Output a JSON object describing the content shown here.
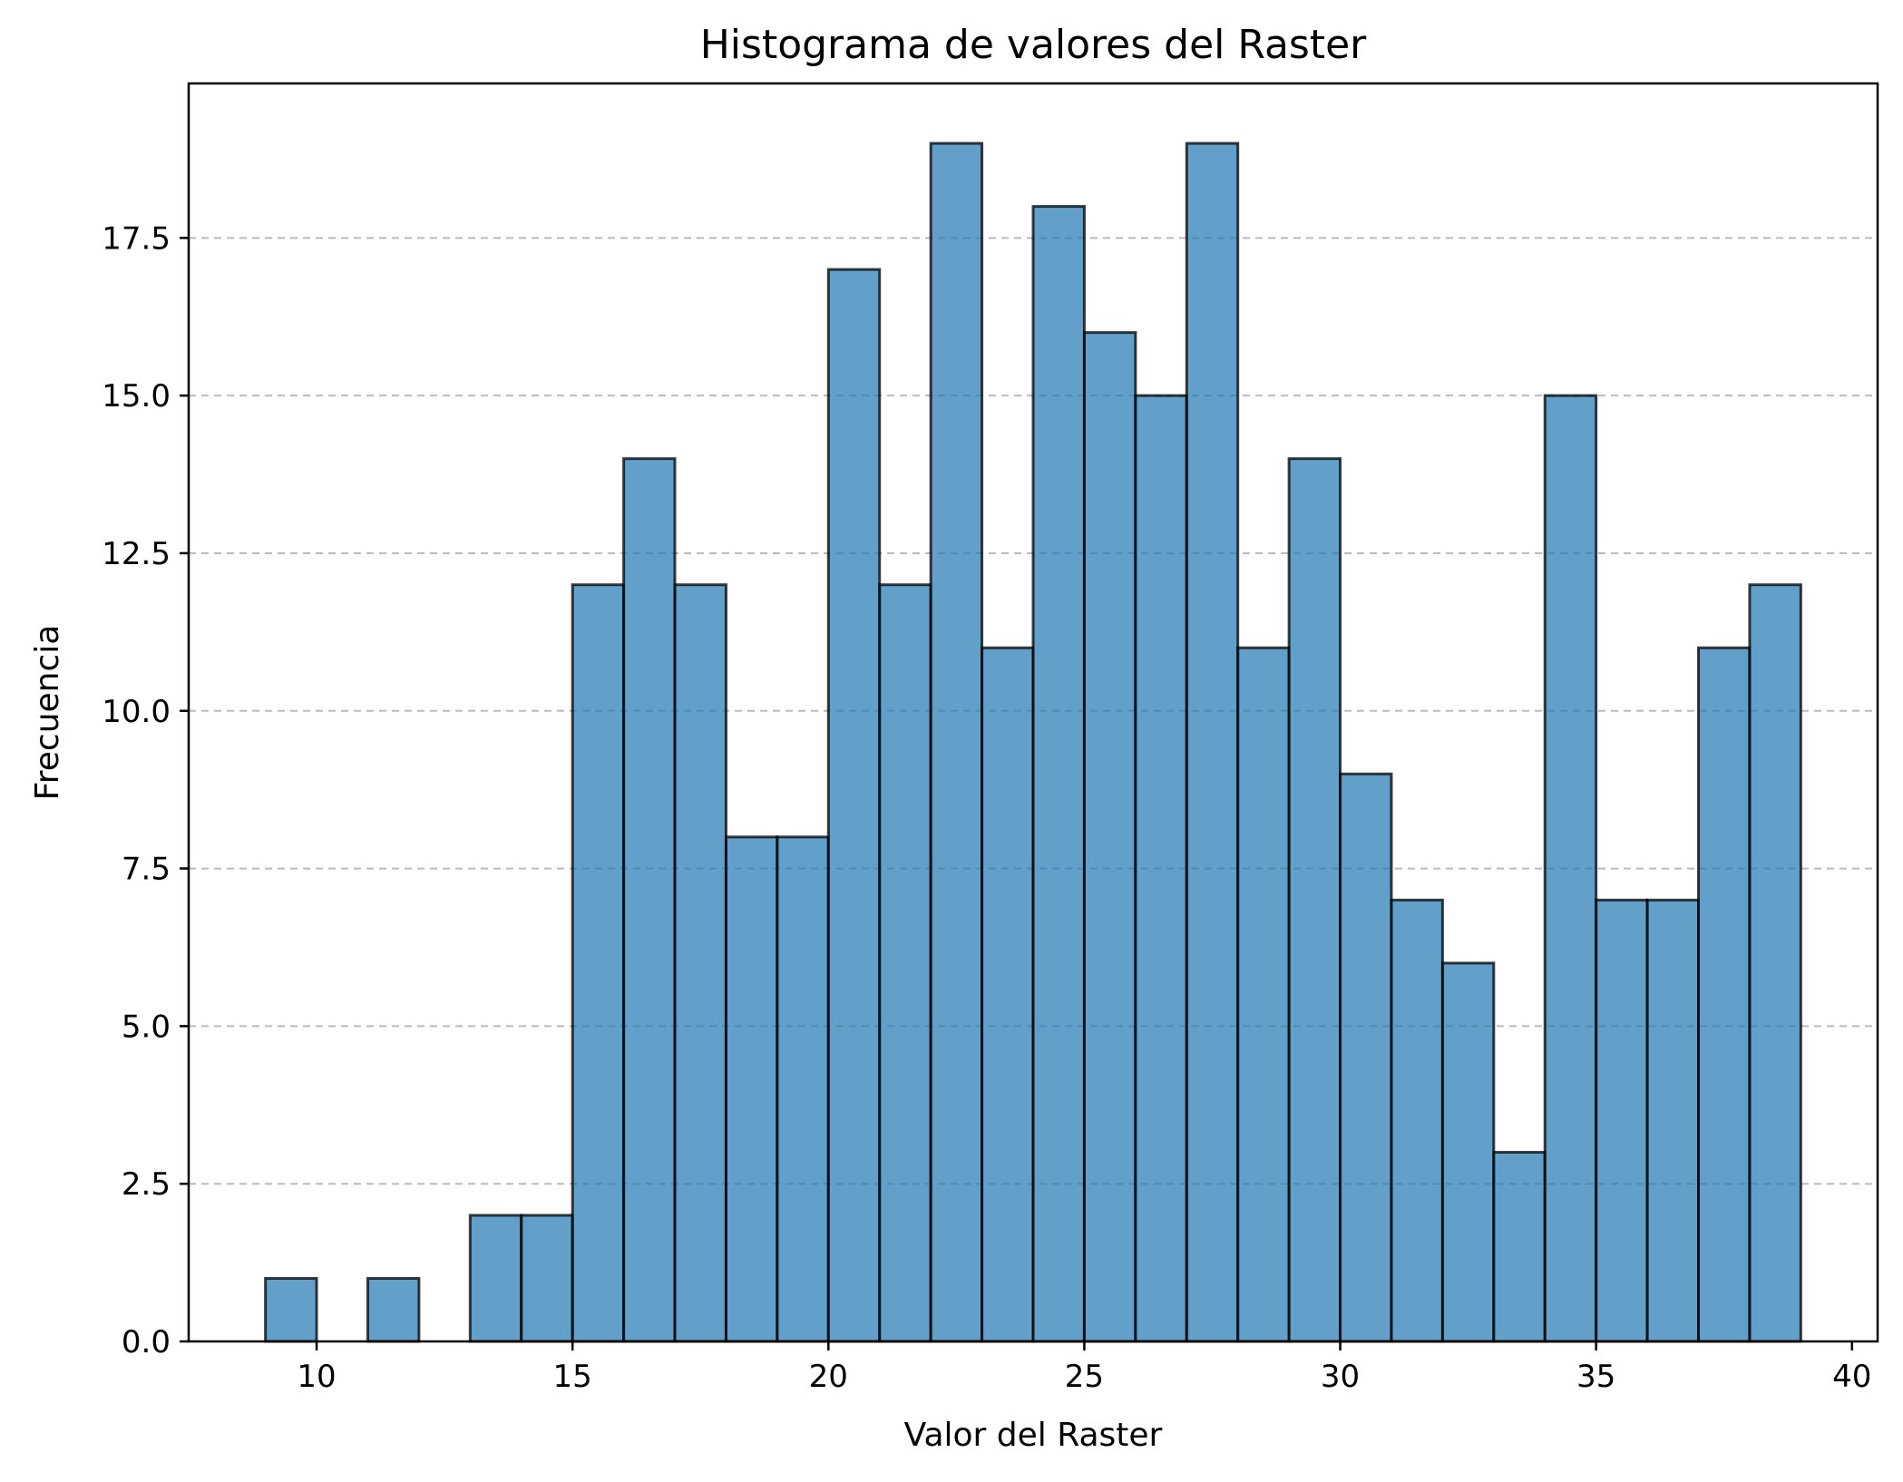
{
  "chart_data": {
    "type": "bar",
    "title": "Histograma de valores del Raster",
    "xlabel": "Valor del Raster",
    "ylabel": "Frecuencia",
    "bin_width": 1,
    "bin_starts": [
      9,
      10,
      11,
      12,
      13,
      14,
      15,
      16,
      17,
      18,
      19,
      20,
      21,
      22,
      23,
      24,
      25,
      26,
      27,
      28,
      29,
      30,
      31,
      32,
      33,
      34,
      35,
      36,
      37,
      38
    ],
    "values": [
      1,
      0,
      1,
      0,
      2,
      2,
      12,
      14,
      12,
      8,
      8,
      17,
      12,
      19,
      11,
      18,
      16,
      15,
      19,
      11,
      14,
      9,
      7,
      6,
      3,
      15,
      7,
      7,
      11,
      12
    ],
    "xlim": [
      7.5,
      40.5
    ],
    "ylim": [
      0,
      19.95
    ],
    "xticks": [
      10,
      15,
      20,
      25,
      30,
      35,
      40
    ],
    "xtick_labels": [
      "10",
      "15",
      "20",
      "25",
      "30",
      "35",
      "40"
    ],
    "yticks": [
      0,
      2.5,
      5,
      7.5,
      10,
      12.5,
      15,
      17.5
    ],
    "ytick_labels": [
      "0.0",
      "2.5",
      "5.0",
      "7.5",
      "10.0",
      "12.5",
      "15.0",
      "17.5"
    ],
    "grid": "y",
    "colors": {
      "bar_fill": "#1f77b4",
      "bar_edge": "#000000",
      "grid": "#b0b0b0"
    }
  }
}
